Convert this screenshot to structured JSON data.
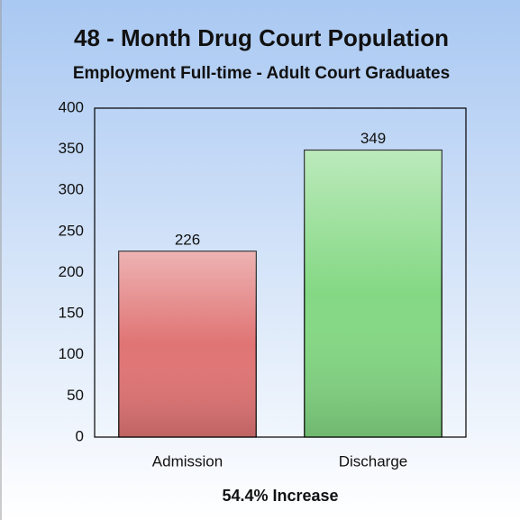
{
  "chart_data": {
    "type": "bar",
    "title": "48 - Month Drug Court Population",
    "subtitle": "Employment Full-time - Adult Court Graduates",
    "categories": [
      "Admission",
      "Discharge"
    ],
    "values": [
      226,
      349
    ],
    "colors": [
      "#e07474",
      "#84d884"
    ],
    "ylim": [
      0,
      400
    ],
    "yticks": [
      0,
      50,
      100,
      150,
      200,
      250,
      300,
      350,
      400
    ],
    "grid": false,
    "annotation": "54.4% Increase"
  }
}
